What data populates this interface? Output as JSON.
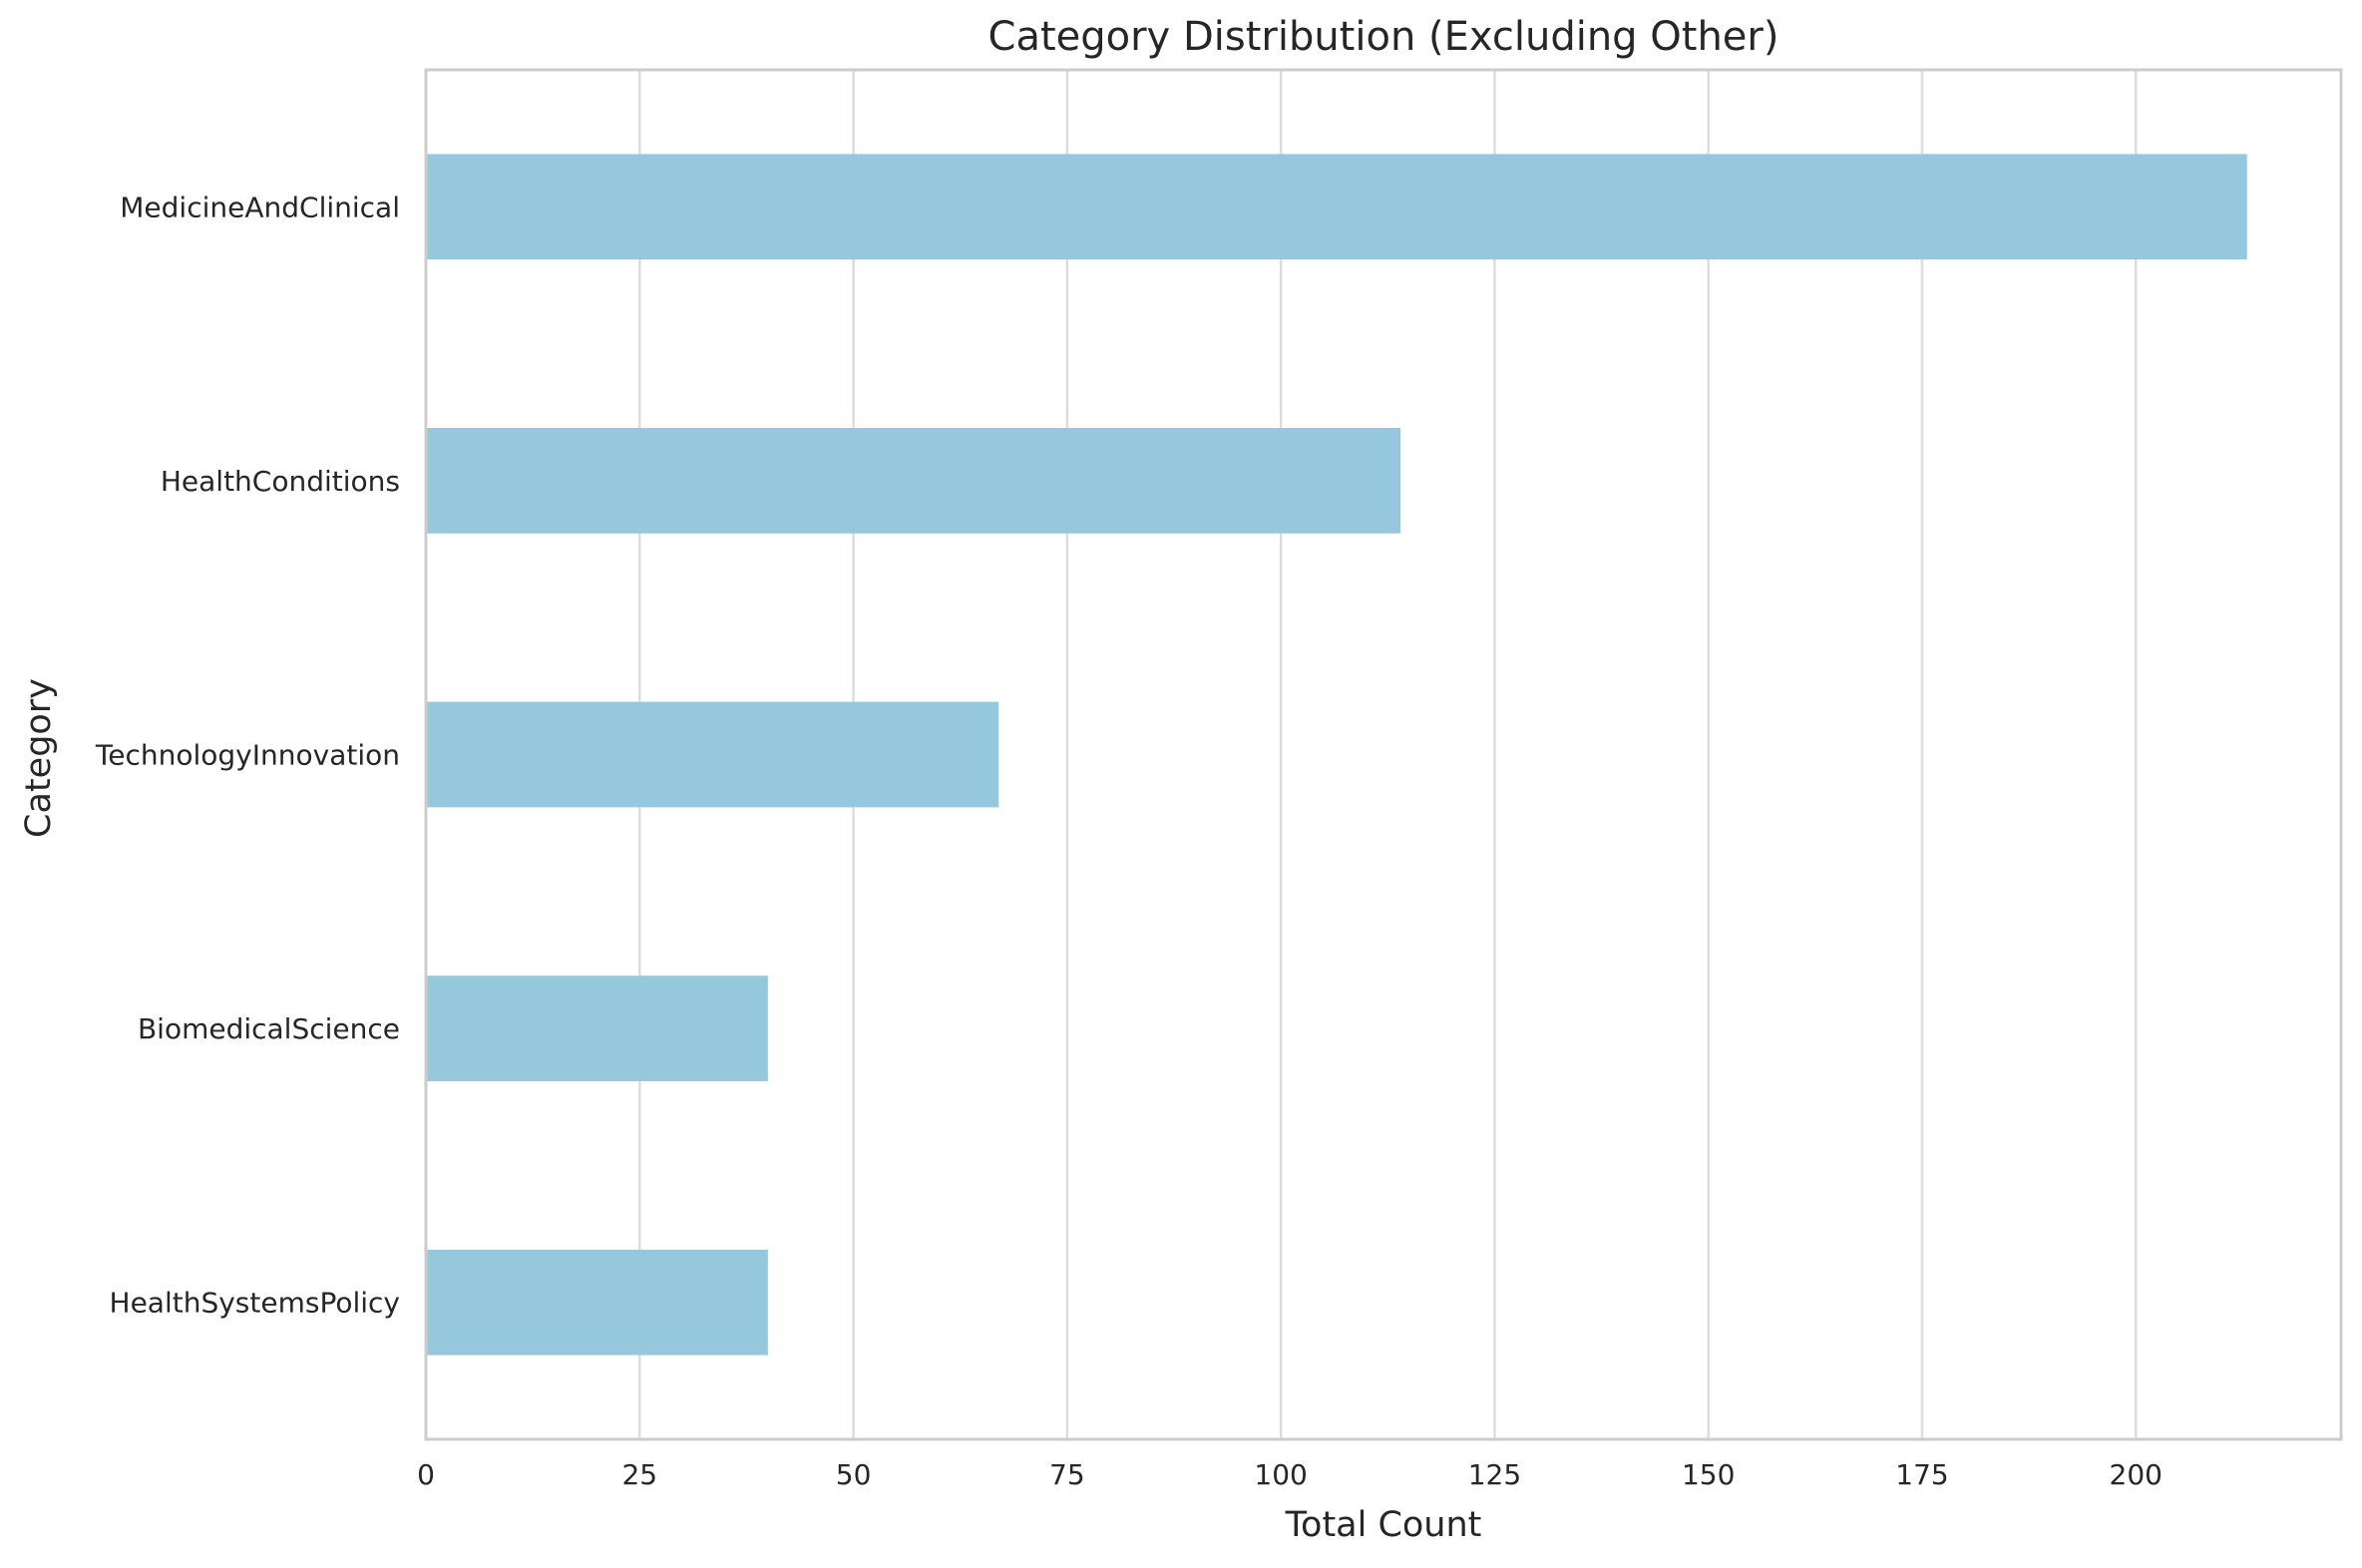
{
  "chart_data": {
    "type": "bar",
    "orientation": "horizontal",
    "title": "Category Distribution (Excluding Other)",
    "xlabel": "Total Count",
    "ylabel": "Category",
    "categories": [
      "MedicineAndClinical",
      "HealthConditions",
      "TechnologyInnovation",
      "BiomedicalScience",
      "HealthSystemsPolicy"
    ],
    "values": [
      213,
      114,
      67,
      40,
      40
    ],
    "xlim": [
      0,
      224
    ],
    "xticks": [
      0,
      25,
      50,
      75,
      100,
      125,
      150,
      175,
      200
    ],
    "grid": "vertical",
    "bar_color": "#95c8dd",
    "grid_color": "#dddddd",
    "spine_color": "#cccccc",
    "text_color": "#262626"
  }
}
